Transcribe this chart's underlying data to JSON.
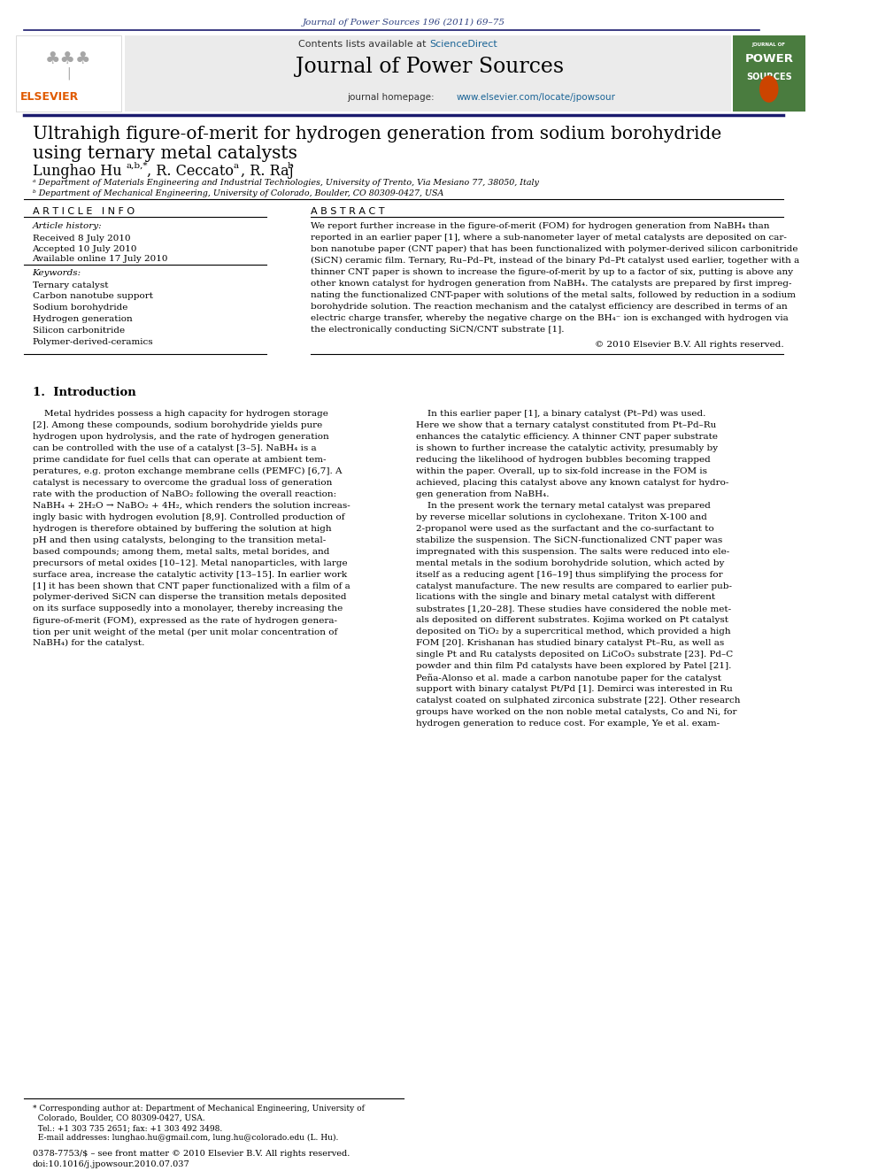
{
  "journal_citation": "Journal of Power Sources 196 (2011) 69–75",
  "journal_name": "Journal of Power Sources",
  "contents_text": "Contents lists available at ",
  "sciencedirect_text": "ScienceDirect",
  "journal_homepage": "journal homepage: ",
  "homepage_url": "www.elsevier.com/locate/jpowsour",
  "title_line1": "Ultrahigh figure-of-merit for hydrogen generation from sodium borohydride",
  "title_line2": "using ternary metal catalysts",
  "affil_a": "ᵃ Department of Materials Engineering and Industrial Technologies, University of Trento, Via Mesiano 77, 38050, Italy",
  "affil_b": "ᵇ Department of Mechanical Engineering, University of Colorado, Boulder, CO 80309-0427, USA",
  "section_article_info": "A R T I C L E   I N F O",
  "article_history_label": "Article history:",
  "received": "Received 8 July 2010",
  "accepted": "Accepted 10 July 2010",
  "available": "Available online 17 July 2010",
  "keywords_label": "Keywords:",
  "keywords": [
    "Ternary catalyst",
    "Carbon nanotube support",
    "Sodium borohydride",
    "Hydrogen generation",
    "Silicon carbonitride",
    "Polymer-derived-ceramics"
  ],
  "section_abstract": "A B S T R A C T",
  "copyright": "© 2010 Elsevier B.V. All rights reserved.",
  "section_intro": "1.  Introduction",
  "footer_note_1": "* Corresponding author at: Department of Mechanical Engineering, University of",
  "footer_note_2": "  Colorado, Boulder, CO 80309-0427, USA.",
  "footer_note_3": "  Tel.: +1 303 735 2651; fax: +1 303 492 3498.",
  "footer_note_4": "  E-mail addresses: lunghao.hu@gmail.com, lung.hu@colorado.edu (L. Hu).",
  "footer_line1": "0378-7753/$ – see front matter © 2010 Elsevier B.V. All rights reserved.",
  "footer_line2": "doi:10.1016/j.jpowsour.2010.07.037",
  "page_bg": "#ffffff",
  "elsevier_text_color": "#e05a00",
  "sciencedirect_color": "#1a6496",
  "url_color": "#1a6496",
  "citation_color": "#2e4080",
  "top_divider_color": "#1a1a6e",
  "journal_cover_bg": "#4a7c3f"
}
